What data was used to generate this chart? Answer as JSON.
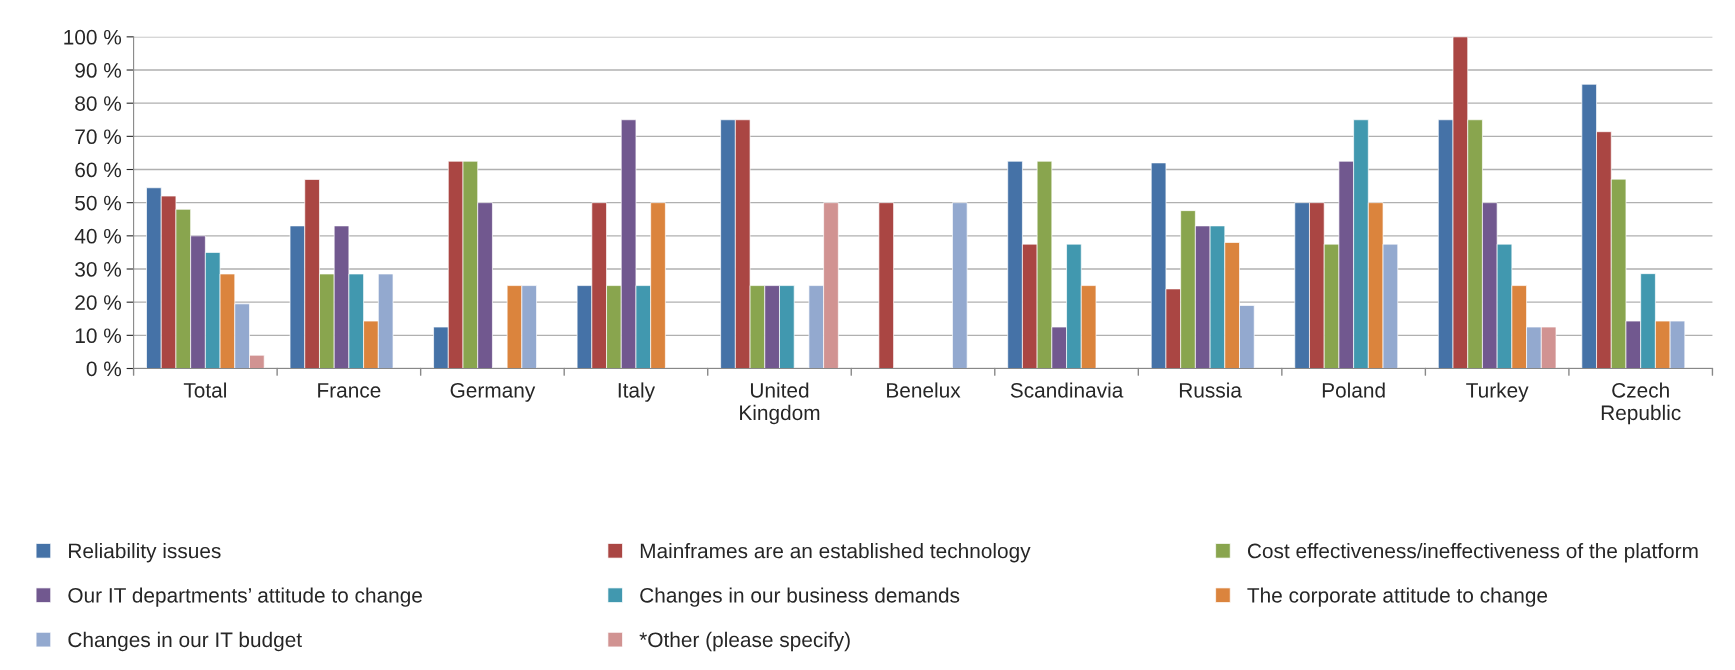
{
  "chart_data": {
    "type": "bar",
    "categories": [
      "Total",
      "France",
      "Germany",
      "Italy",
      "United\nKingdom",
      "Benelux",
      "Scandinavia",
      "Russia",
      "Poland",
      "Turkey",
      "Czech\nRepublic"
    ],
    "series": [
      {
        "name": "Reliability issues",
        "color": "#4572a7",
        "values": [
          54.5,
          43,
          12.5,
          25,
          75,
          null,
          62.5,
          62,
          50,
          75,
          85.7
        ]
      },
      {
        "name": "Mainframes are an established technology",
        "color": "#aa4643",
        "values": [
          52,
          57,
          62.5,
          50,
          75,
          50,
          37.5,
          24,
          50,
          100,
          71.4
        ]
      },
      {
        "name": "Cost effectiveness/ineffectiveness of the platform",
        "color": "#89a54e",
        "values": [
          48,
          28.5,
          62.5,
          25,
          25,
          null,
          62.5,
          47.6,
          37.5,
          75,
          57.1
        ]
      },
      {
        "name": "Our IT departments’ attitude to change",
        "color": "#71588f",
        "values": [
          40,
          43,
          50,
          75,
          25,
          null,
          12.5,
          43,
          62.5,
          50,
          14.3
        ]
      },
      {
        "name": "Changes in our business demands",
        "color": "#4198af",
        "values": [
          35,
          28.5,
          null,
          25,
          25,
          null,
          37.5,
          43,
          75,
          37.5,
          28.6
        ]
      },
      {
        "name": "The corporate attitude to change",
        "color": "#db843d",
        "values": [
          28.5,
          14.3,
          25,
          50,
          null,
          null,
          25,
          38,
          50,
          25,
          14.3
        ]
      },
      {
        "name": "Changes in our IT budget",
        "color": "#93a9cf",
        "values": [
          19.5,
          28.5,
          25,
          null,
          25,
          50,
          null,
          19,
          37.5,
          12.5,
          14.3
        ]
      },
      {
        "name": "*Other (please specify)",
        "color": "#d19392",
        "values": [
          4,
          null,
          null,
          null,
          50,
          null,
          null,
          null,
          null,
          12.5,
          null
        ]
      }
    ],
    "ylim": [
      0,
      100
    ],
    "yticks": [
      {
        "value": 0,
        "label": "0 %"
      },
      {
        "value": 10,
        "label": "10 %"
      },
      {
        "value": 20,
        "label": "20 %"
      },
      {
        "value": 30,
        "label": "30 %"
      },
      {
        "value": 40,
        "label": "40 %"
      },
      {
        "value": 50,
        "label": "50 %"
      },
      {
        "value": 60,
        "label": "60 %"
      },
      {
        "value": 70,
        "label": "70 %"
      },
      {
        "value": 80,
        "label": "80 %"
      },
      {
        "value": 90,
        "label": "90 %"
      },
      {
        "value": 100,
        "label": "100 %"
      }
    ],
    "grid": "y",
    "legend": "bottom"
  }
}
